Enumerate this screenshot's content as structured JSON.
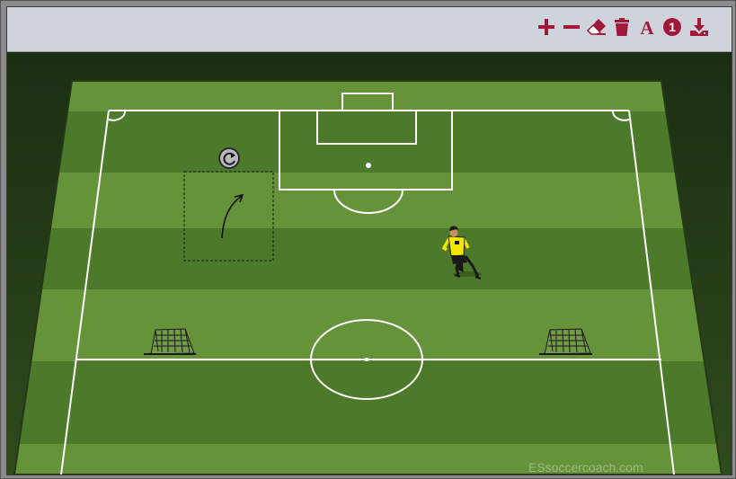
{
  "toolbar": {
    "tools": [
      {
        "name": "zoom-in",
        "icon": "plus-icon"
      },
      {
        "name": "zoom-out",
        "icon": "minus-icon"
      },
      {
        "name": "eraser",
        "icon": "eraser-icon"
      },
      {
        "name": "delete",
        "icon": "trash-icon"
      },
      {
        "name": "text",
        "icon": "text-a-icon",
        "label": "A"
      },
      {
        "name": "number",
        "icon": "number-badge-icon",
        "label": "1"
      },
      {
        "name": "download",
        "icon": "download-icon"
      }
    ],
    "icon_color": "#a0183a"
  },
  "pitch": {
    "stripe_dark": "#4c7a2a",
    "stripe_light": "#66923a",
    "line_color": "#ffffff",
    "watermark": "ESsoccercoach.com"
  },
  "objects": [
    {
      "type": "goalkeeper",
      "color": "#f2e600"
    },
    {
      "type": "mini-goal-left"
    },
    {
      "type": "mini-goal-right"
    },
    {
      "type": "curved-arrow"
    },
    {
      "type": "rotate-handle",
      "icon": "rotate-icon"
    }
  ]
}
